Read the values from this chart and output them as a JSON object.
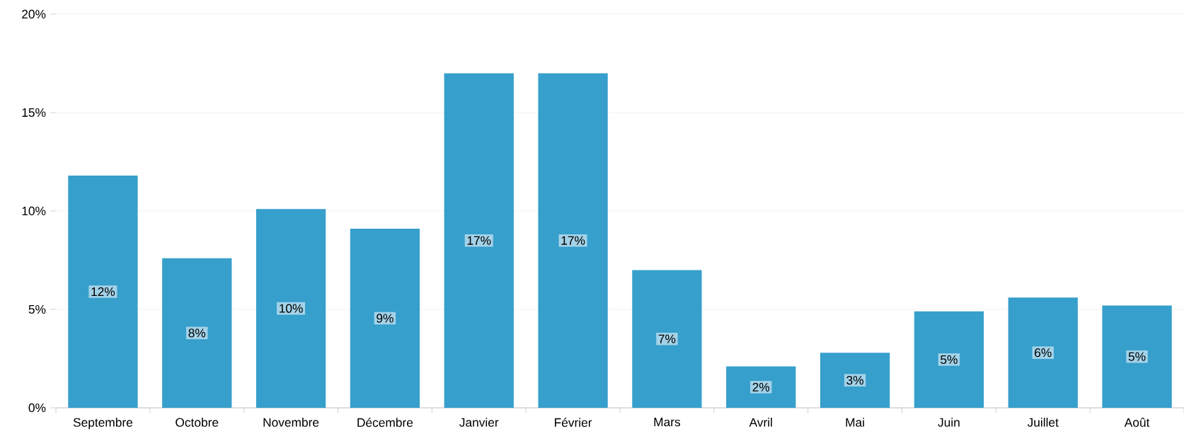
{
  "chart_data": {
    "type": "bar",
    "categories": [
      "Septembre",
      "Octobre",
      "Novembre",
      "Décembre",
      "Janvier",
      "Février",
      "Mars",
      "Avril",
      "Mai",
      "Juin",
      "Juillet",
      "Août"
    ],
    "values": [
      11.8,
      7.6,
      10.1,
      9.1,
      17.0,
      17.0,
      7.0,
      2.1,
      2.8,
      4.9,
      5.6,
      5.2
    ],
    "value_labels": [
      "12%",
      "8%",
      "10%",
      "9%",
      "17%",
      "17%",
      "7%",
      "2%",
      "3%",
      "5%",
      "6%",
      "5%"
    ],
    "color": "#369fcc",
    "ylim": [
      0,
      20
    ],
    "yticks": [
      {
        "value": 0,
        "label": "0%"
      },
      {
        "value": 5,
        "label": "5%"
      },
      {
        "value": 10,
        "label": "10%"
      },
      {
        "value": 15,
        "label": "15%"
      },
      {
        "value": 20,
        "label": "20%"
      }
    ],
    "grid": "y"
  }
}
